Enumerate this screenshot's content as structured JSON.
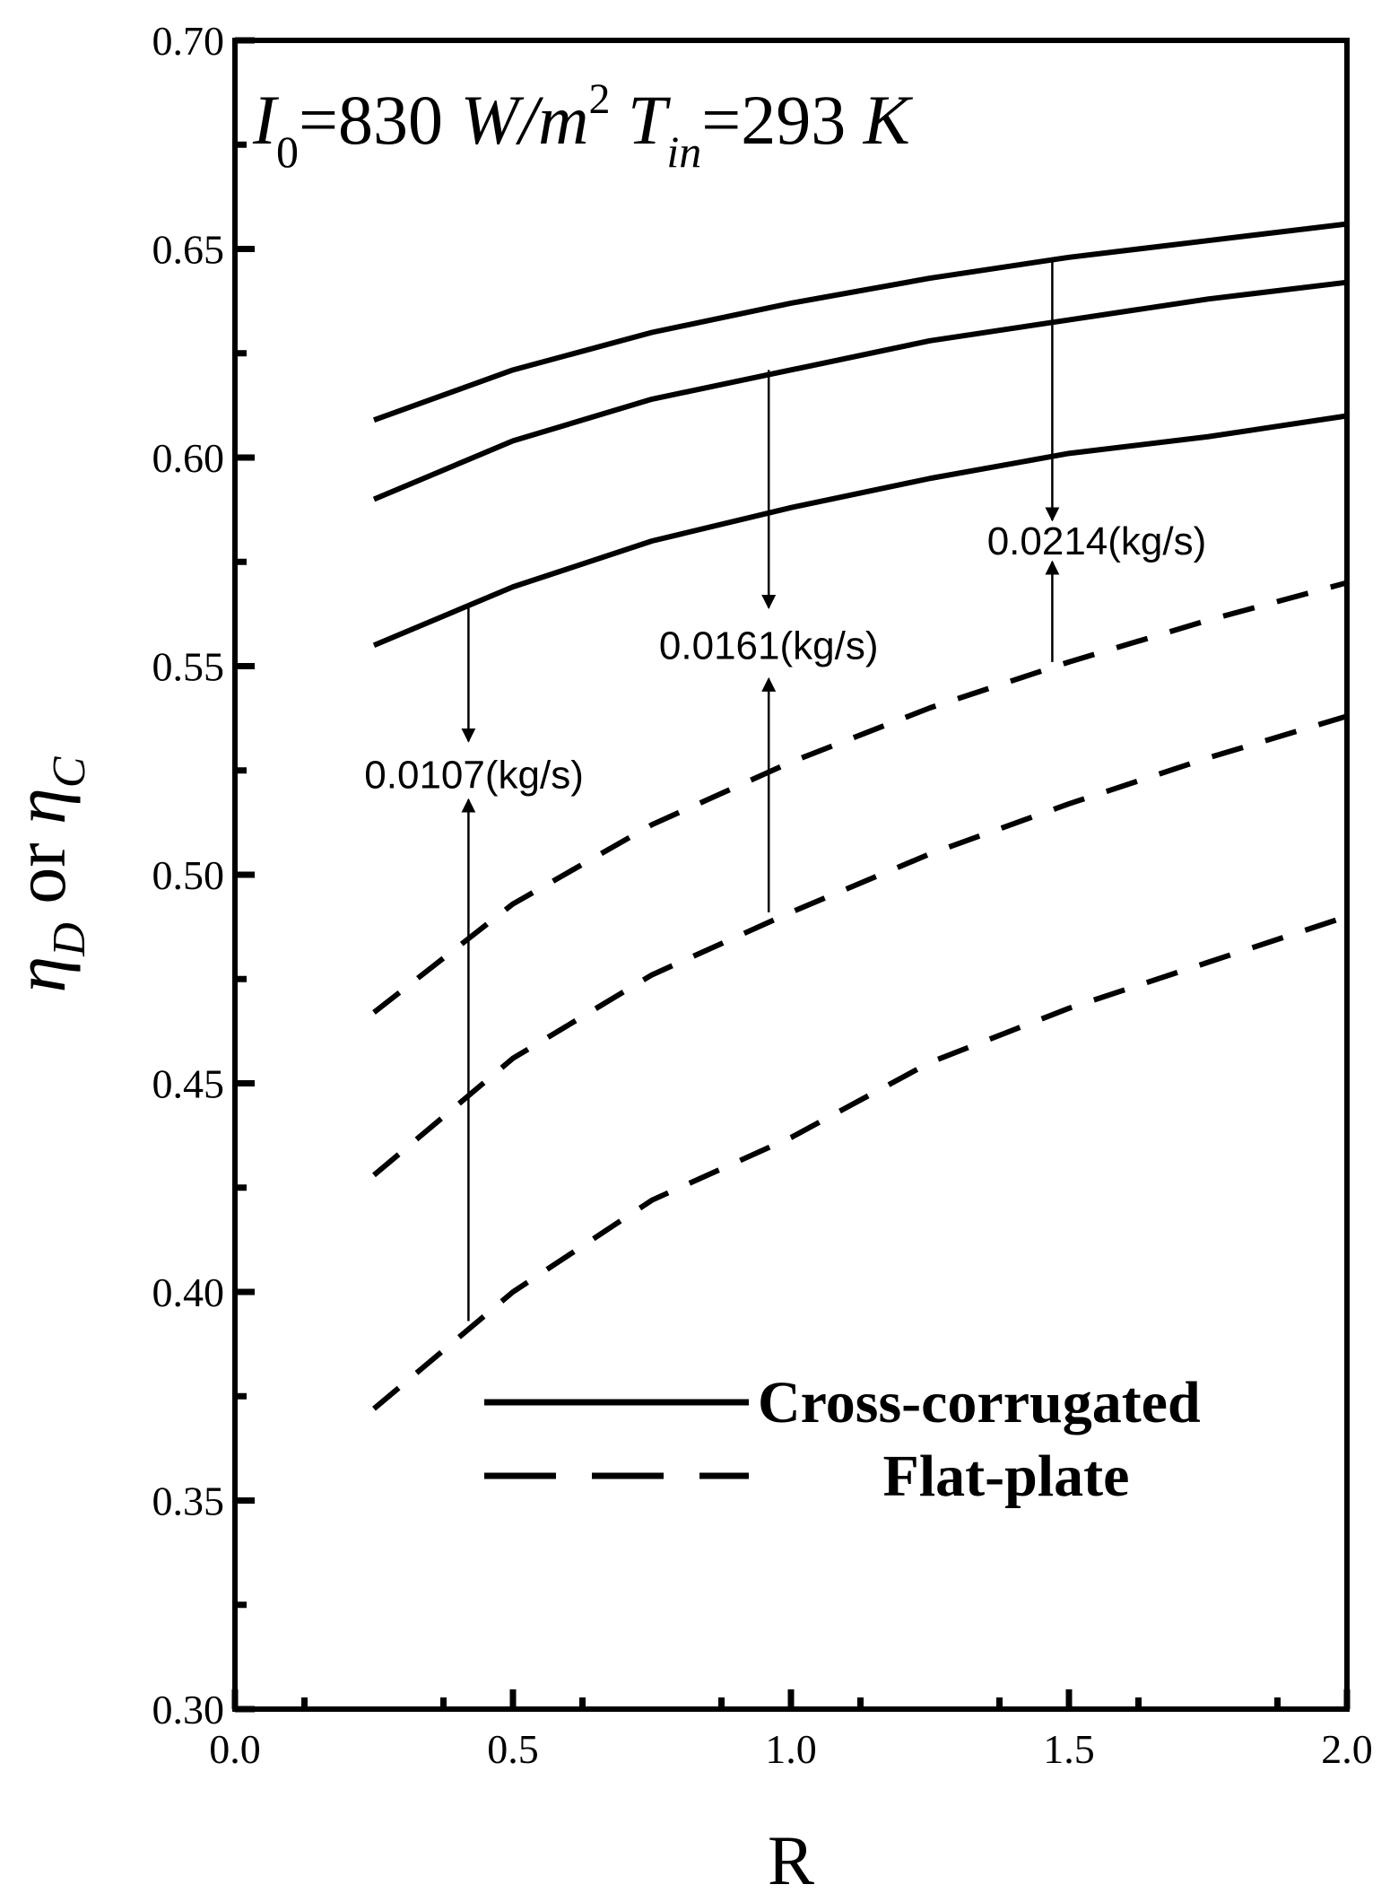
{
  "chart_data": {
    "type": "line",
    "xlabel": "R",
    "ylabel": {
      "part1": "η",
      "sub1": "D",
      "mid": "or",
      "part2": "η",
      "sub2": "C"
    },
    "xlim": [
      0.0,
      2.0
    ],
    "ylim": [
      0.3,
      0.7
    ],
    "xticks": [
      "0.0",
      "0.5",
      "1.0",
      "1.5",
      "2.0"
    ],
    "yticks": [
      "0.30",
      "0.35",
      "0.40",
      "0.45",
      "0.50",
      "0.55",
      "0.60",
      "0.65",
      "0.70"
    ],
    "x_values": [
      0.25,
      0.5,
      0.75,
      1.0,
      1.25,
      1.5,
      1.75,
      2.0
    ],
    "conditions": {
      "i_sym": "I",
      "i_sub": "0",
      "i_val": "=830",
      "i_unit": "W/m",
      "i_exp": "2",
      "t_sym": "T",
      "t_sub": "in",
      "t_val": "=293",
      "t_unit": "K"
    },
    "series": [
      {
        "style": "solid",
        "values": [
          0.609,
          0.621,
          0.63,
          0.637,
          0.643,
          0.648,
          0.652,
          0.656
        ]
      },
      {
        "style": "solid",
        "values": [
          0.59,
          0.604,
          0.614,
          0.621,
          0.628,
          0.633,
          0.638,
          0.642
        ]
      },
      {
        "style": "solid",
        "values": [
          0.555,
          0.569,
          0.58,
          0.588,
          0.595,
          0.601,
          0.605,
          0.61
        ]
      },
      {
        "style": "dashed",
        "values": [
          0.467,
          0.493,
          0.512,
          0.527,
          0.54,
          0.551,
          0.561,
          0.57
        ]
      },
      {
        "style": "dashed",
        "values": [
          0.428,
          0.456,
          0.476,
          0.491,
          0.505,
          0.517,
          0.528,
          0.538
        ]
      },
      {
        "style": "dashed",
        "values": [
          0.372,
          0.4,
          0.422,
          0.437,
          0.455,
          0.468,
          0.479,
          0.49
        ]
      }
    ],
    "annotations": [
      {
        "text": "0.0107(kg/s)",
        "x": 0.42,
        "top_from": 0.565,
        "top_to": 0.532,
        "bottom_from": 0.393,
        "bottom_to": 0.518,
        "label_y": 0.524,
        "label_x": 0.43
      },
      {
        "text": "0.0161(kg/s)",
        "x": 0.96,
        "top_from": 0.621,
        "top_to": 0.564,
        "bottom_from": 0.491,
        "bottom_to": 0.547,
        "label_y": 0.555,
        "label_x": 0.96
      },
      {
        "text": "0.0214(kg/s)",
        "x": 1.47,
        "top_from": 0.647,
        "top_to": 0.585,
        "bottom_from": 0.551,
        "bottom_to": 0.575,
        "label_y": 0.58,
        "label_x": 1.55
      }
    ],
    "legend": [
      {
        "style": "solid",
        "label": "Cross-corrugated"
      },
      {
        "style": "dashed",
        "label": "Flat-plate"
      }
    ],
    "legend_placement": "bottom-right",
    "grid": false
  }
}
